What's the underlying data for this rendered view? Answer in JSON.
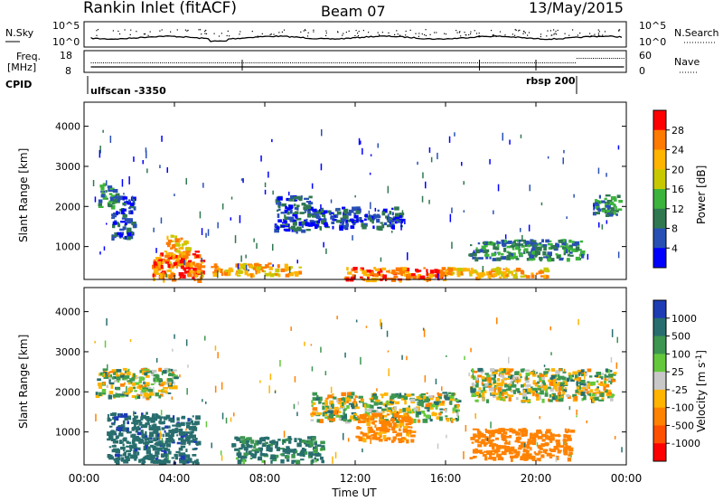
{
  "header": {
    "site": "Rankin Inlet (fitACF)",
    "beam": "Beam 07",
    "date": "13/May/2015"
  },
  "strips": {
    "nsky": {
      "label": "N.Sky",
      "ticks": [
        "10^5",
        "10^0"
      ]
    },
    "nsearch": {
      "label": "N.Search",
      "ticks": [
        "10^5",
        "10^0"
      ]
    },
    "freq": {
      "label_line1": "Freq.",
      "label_line2": "[MHz]",
      "ticks": [
        "18",
        "8"
      ]
    },
    "nave": {
      "label": "Nave",
      "ticks": [
        "60",
        "0"
      ]
    },
    "cpid": {
      "label": "CPID",
      "segments": [
        "ulfscan -3350",
        "rbsp 200"
      ],
      "change_hour": 21.8
    }
  },
  "colors": {
    "velocity_gray": "#c8c8c8"
  },
  "power_panel": {
    "ylabel": "Slant Range [km]",
    "colorbar_label": "Power [dB]",
    "colorbar_ticks": [
      "28",
      "24",
      "20",
      "16",
      "12",
      "8",
      "4"
    ],
    "colorbar_colors": [
      "#ff0000",
      "#ff7a00",
      "#ffb400",
      "#c8c800",
      "#3cb43c",
      "#307850",
      "#2850b4",
      "#0000ff"
    ]
  },
  "velocity_panel": {
    "ylabel": "Slant Range [km]",
    "colorbar_label": "Velocity [m s-1]",
    "colorbar_ticks": [
      "1000",
      "500",
      "100",
      "25",
      "-25",
      "-100",
      "-500",
      "-1000"
    ],
    "colorbar_colors": [
      "#1e3cb4",
      "#286e6e",
      "#3c9650",
      "#64c83c",
      "#c8c8c8",
      "#ffb400",
      "#ff8200",
      "#ff5000",
      "#ff0000"
    ]
  },
  "chart_data": [
    {
      "type": "heatmap",
      "title": "Power",
      "xlabel": "Time UT",
      "ylabel": "Slant Range [km]",
      "x_ticks": [
        "00:00",
        "04:00",
        "08:00",
        "12:00",
        "16:00",
        "20:00",
        "00:00"
      ],
      "y_ticks": [
        1000,
        2000,
        3000,
        4000
      ],
      "xlim_hours": [
        0,
        24
      ],
      "ylim_km": [
        180,
        4600
      ],
      "colorbar_label": "Power [dB]",
      "colorbar_ticks": [
        4,
        8,
        12,
        16,
        20,
        24,
        28
      ],
      "regions": [
        {
          "t": [
            0.6,
            1.4
          ],
          "r": [
            2000,
            2600
          ],
          "level": 3
        },
        {
          "t": [
            1.2,
            2.2
          ],
          "r": [
            1200,
            2300
          ],
          "level": 2
        },
        {
          "t": [
            3.6,
            4.6
          ],
          "r": [
            500,
            1300
          ],
          "level": 6
        },
        {
          "t": [
            3.0,
            5.2
          ],
          "r": [
            180,
            900
          ],
          "level": 7
        },
        {
          "t": [
            5.6,
            9.5
          ],
          "r": [
            300,
            600
          ],
          "level": 6
        },
        {
          "t": [
            8.4,
            10.0
          ],
          "r": [
            1400,
            2300
          ],
          "level": 2
        },
        {
          "t": [
            10.0,
            14.0
          ],
          "r": [
            1500,
            2000
          ],
          "level": 2
        },
        {
          "t": [
            11.5,
            16.0
          ],
          "r": [
            180,
            500
          ],
          "level": 7
        },
        {
          "t": [
            16.0,
            20.5
          ],
          "r": [
            250,
            500
          ],
          "level": 6
        },
        {
          "t": [
            17.0,
            22.0
          ],
          "r": [
            700,
            1200
          ],
          "level": 3
        },
        {
          "t": [
            22.5,
            23.8
          ],
          "r": [
            1800,
            2300
          ],
          "level": 3
        }
      ]
    },
    {
      "type": "heatmap",
      "title": "Velocity",
      "xlabel": "Time UT",
      "ylabel": "Slant Range [km]",
      "x_ticks": [
        "00:00",
        "04:00",
        "08:00",
        "12:00",
        "16:00",
        "20:00",
        "00:00"
      ],
      "y_ticks": [
        1000,
        2000,
        3000,
        4000
      ],
      "xlim_hours": [
        0,
        24
      ],
      "ylim_km": [
        180,
        4600
      ],
      "colorbar_label": "Velocity [m s-1]",
      "colorbar_ticks": [
        -1000,
        -500,
        -100,
        -25,
        25,
        100,
        500,
        1000
      ],
      "regions": [
        {
          "t": [
            0.5,
            4.0
          ],
          "r": [
            1900,
            2600
          ],
          "value": 0
        },
        {
          "t": [
            10.0,
            16.5
          ],
          "r": [
            1300,
            2000
          ],
          "value": 0
        },
        {
          "t": [
            17.0,
            23.5
          ],
          "r": [
            1800,
            2600
          ],
          "value": 0
        },
        {
          "t": [
            17.0,
            21.5
          ],
          "r": [
            350,
            1100
          ],
          "value": -300
        },
        {
          "t": [
            12.0,
            14.5
          ],
          "r": [
            800,
            1500
          ],
          "value": -200
        },
        {
          "t": [
            1.0,
            5.0
          ],
          "r": [
            250,
            1500
          ],
          "value": 400
        },
        {
          "t": [
            6.5,
            10.5
          ],
          "r": [
            300,
            900
          ],
          "value": 150
        }
      ]
    }
  ]
}
